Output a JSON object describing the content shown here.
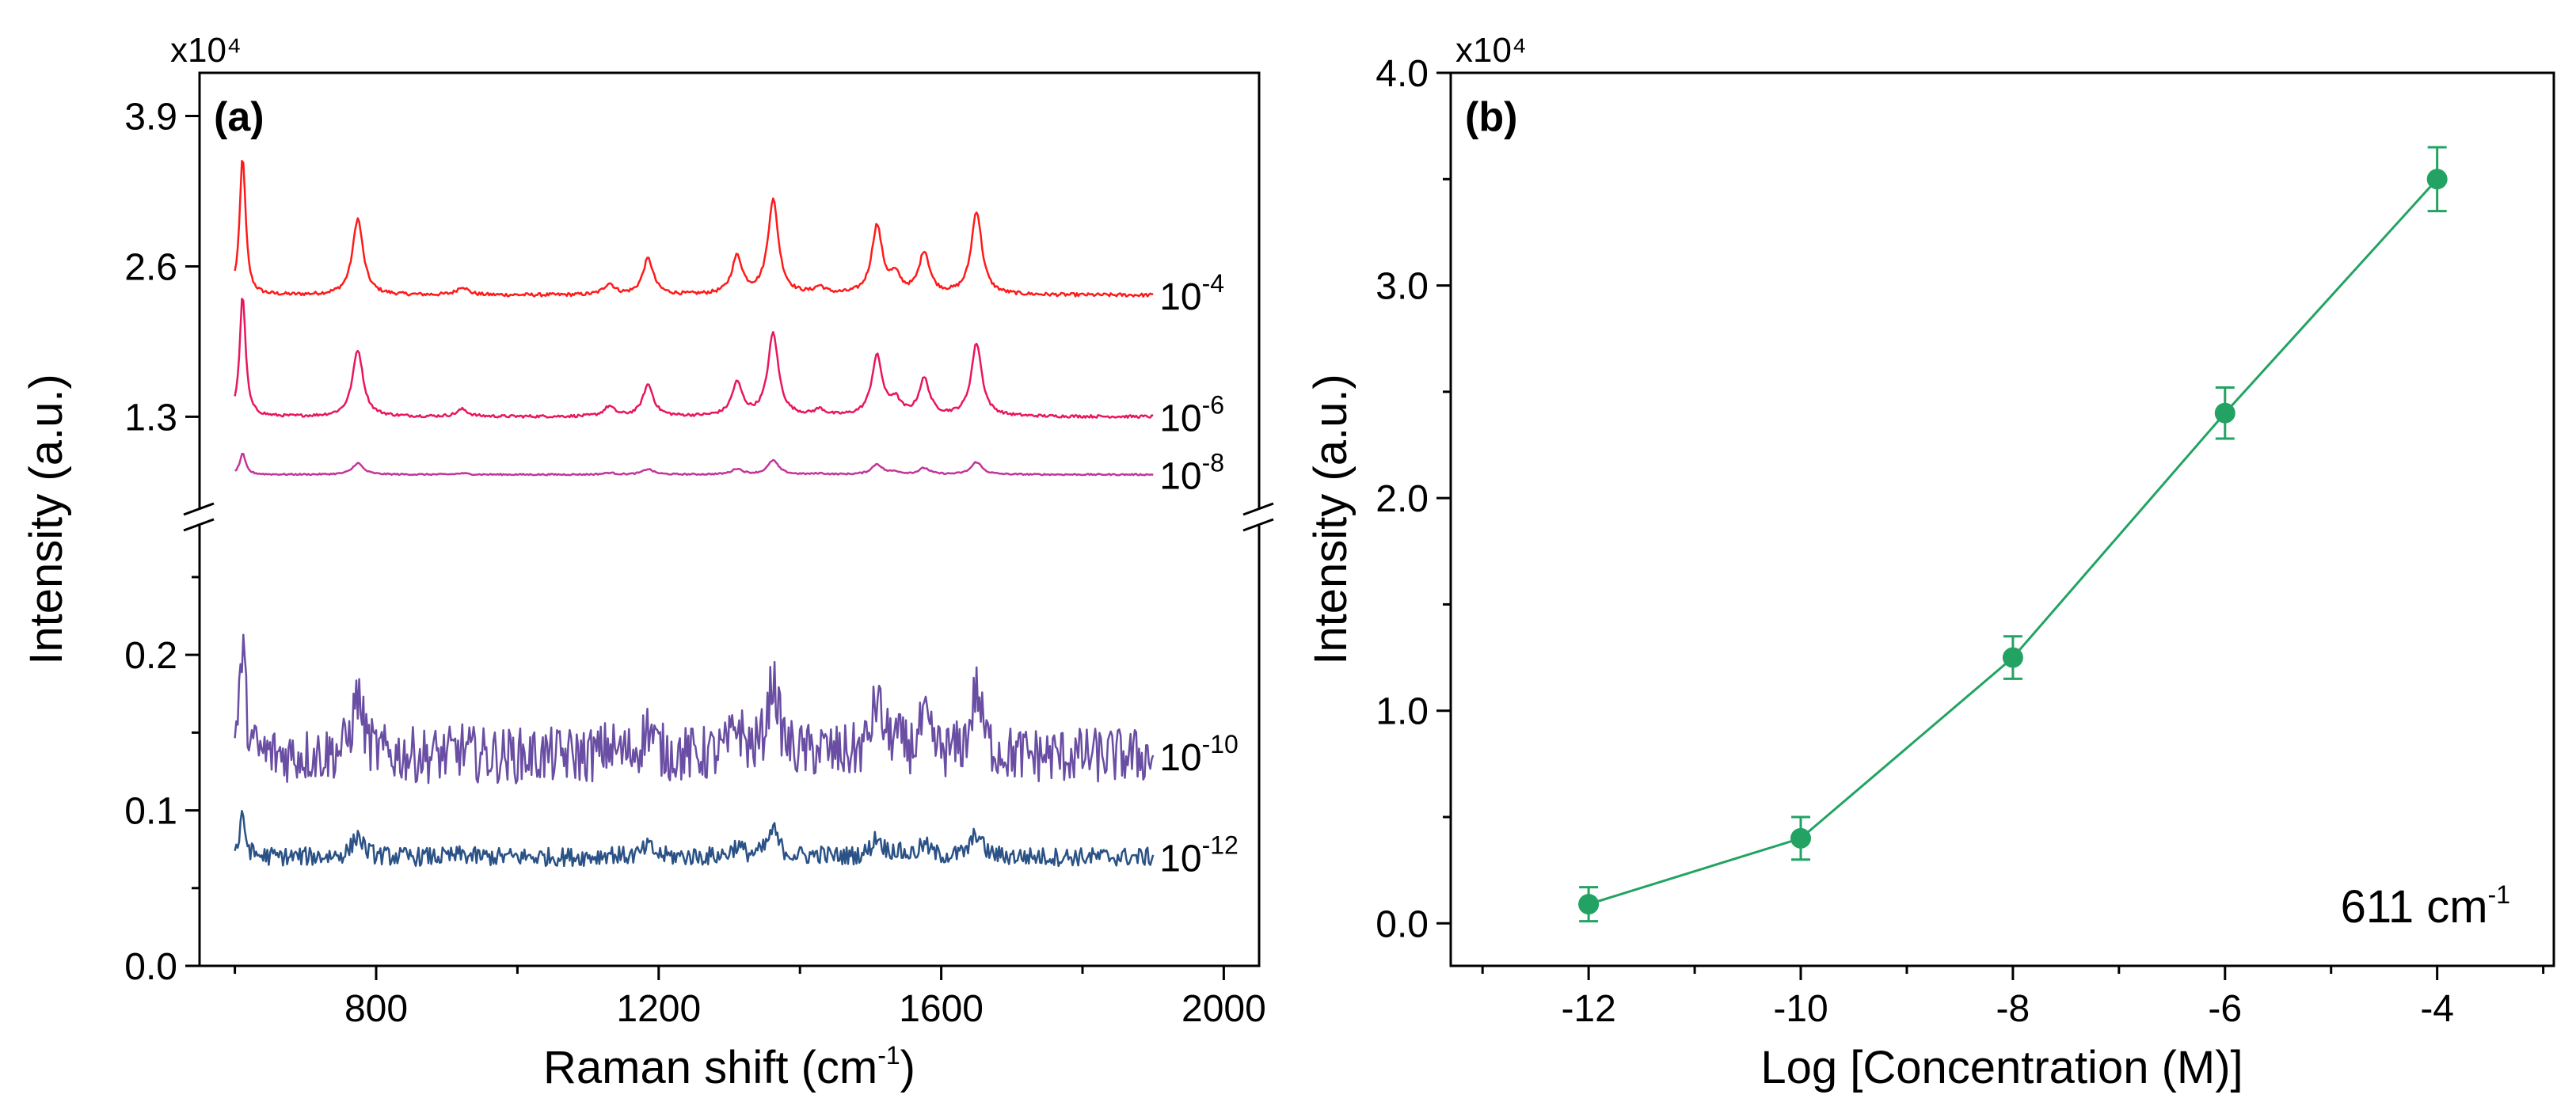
{
  "chart_data": [
    {
      "panel": "(a)",
      "type": "line",
      "title": "",
      "xlabel": "Raman shift (cm⁻¹)",
      "ylabel": "Intensity (a.u.)",
      "y_multiplier": "x10⁴",
      "xlim": [
        550,
        2050
      ],
      "x_ticks": [
        "800",
        "1200",
        "1600",
        "2000"
      ],
      "upper_segment": {
        "ylim": [
          0.55,
          4.15
        ],
        "ticks": [
          "1.3",
          "2.6",
          "3.9"
        ]
      },
      "lower_segment": {
        "ylim": [
          0.0,
          0.28
        ],
        "ticks": [
          "0.0",
          "0.1",
          "0.2"
        ]
      },
      "axis_break": true,
      "x_range_data": [
        600,
        1900
      ],
      "peaks_cm1": [
        611,
        774,
        922,
        1130,
        1185,
        1311,
        1362,
        1428,
        1509,
        1535,
        1576,
        1650
      ],
      "relative_peak_heights": [
        1.0,
        0.55,
        0.06,
        0.08,
        0.26,
        0.27,
        0.68,
        0.05,
        0.49,
        0.12,
        0.3,
        0.6
      ],
      "series": [
        {
          "name": "10⁻⁴",
          "exponent": "-4",
          "color": "#ff1a1a",
          "baseline": 2.35,
          "max": 3.55,
          "segment": "upper",
          "noise": 0.015
        },
        {
          "name": "10⁻⁶",
          "exponent": "-6",
          "color": "#e8175d",
          "baseline": 1.3,
          "max": 2.35,
          "segment": "upper",
          "noise": 0.012
        },
        {
          "name": "10⁻⁸",
          "exponent": "-8",
          "color": "#c2369a",
          "baseline": 0.8,
          "max": 0.98,
          "segment": "upper",
          "noise": 0.006
        },
        {
          "name": "10⁻¹⁰",
          "exponent": "-10",
          "color": "#6a4ea3",
          "baseline": 0.135,
          "max": 0.205,
          "segment": "lower",
          "noise": 0.018
        },
        {
          "name": "10⁻¹²",
          "exponent": "-12",
          "color": "#2b5286",
          "baseline": 0.07,
          "max": 0.095,
          "segment": "lower",
          "noise": 0.006
        }
      ]
    },
    {
      "panel": "(b)",
      "type": "line",
      "title": "",
      "xlabel": "Log [Concentration (M)]",
      "ylabel": "Intensity (a.u.)",
      "y_multiplier": "x10⁴",
      "annotation": "611 cm⁻¹",
      "color": "#22a363",
      "xlim": [
        -13.3,
        -2.9
      ],
      "ylim": [
        -0.2,
        4.0
      ],
      "x_ticks": [
        "-12",
        "-10",
        "-8",
        "-6",
        "-4"
      ],
      "y_ticks": [
        "0.0",
        "1.0",
        "2.0",
        "3.0",
        "4.0"
      ],
      "x": [
        -12,
        -10,
        -8,
        -6,
        -4
      ],
      "y": [
        0.09,
        0.4,
        1.25,
        2.4,
        3.5
      ],
      "error": [
        0.08,
        0.1,
        0.1,
        0.12,
        0.15
      ]
    }
  ]
}
